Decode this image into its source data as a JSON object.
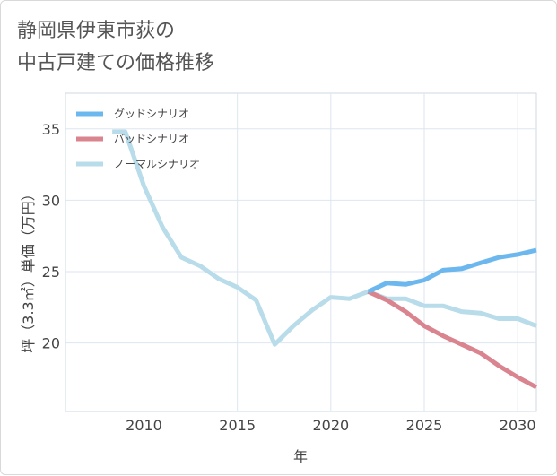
{
  "chart_data": {
    "type": "line",
    "title_lines": [
      "静岡県伊東市荻の",
      "中古戸建ての価格推移"
    ],
    "xlabel": "年",
    "ylabel": "坪（3.3㎡）単価（万円）",
    "xlim": [
      2005.8,
      2031
    ],
    "ylim": [
      15.2,
      37.5
    ],
    "xticks": [
      2010,
      2015,
      2020,
      2025,
      2030
    ],
    "yticks": [
      20,
      25,
      30,
      35
    ],
    "grid": true,
    "legend_position": "top-left",
    "series": [
      {
        "name": "グッドシナリオ",
        "color": "#6cb8ee",
        "x": [
          2022,
          2023,
          2024,
          2025,
          2026,
          2027,
          2028,
          2029,
          2030,
          2031
        ],
        "y": [
          23.6,
          24.2,
          24.1,
          24.4,
          25.1,
          25.2,
          25.6,
          26.0,
          26.2,
          26.5
        ]
      },
      {
        "name": "バッドシナリオ",
        "color": "#d9848e",
        "x": [
          2022,
          2023,
          2024,
          2025,
          2026,
          2027,
          2028,
          2029,
          2030,
          2031
        ],
        "y": [
          23.6,
          23.0,
          22.2,
          21.2,
          20.5,
          19.9,
          19.3,
          18.4,
          17.6,
          16.9
        ]
      },
      {
        "name": "ノーマルシナリオ",
        "color": "#b9dcea",
        "x": [
          2008.3,
          2009,
          2010,
          2011,
          2012,
          2013,
          2014,
          2015,
          2016,
          2017,
          2018,
          2019,
          2020,
          2021,
          2022,
          2023,
          2024,
          2025,
          2026,
          2027,
          2028,
          2029,
          2030,
          2031
        ],
        "y": [
          34.8,
          34.8,
          31.0,
          28.1,
          26.0,
          25.4,
          24.5,
          23.9,
          23.0,
          19.9,
          21.2,
          22.3,
          23.2,
          23.1,
          23.6,
          23.1,
          23.1,
          22.6,
          22.6,
          22.2,
          22.1,
          21.7,
          21.7,
          21.2
        ]
      }
    ]
  }
}
